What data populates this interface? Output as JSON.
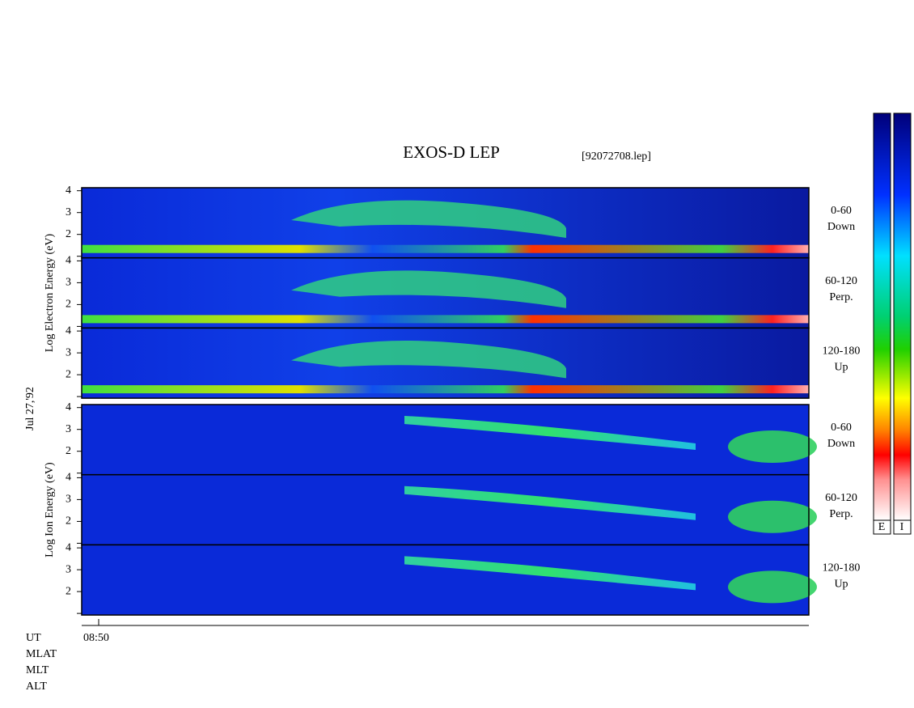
{
  "header": {
    "title": "EXOS-D LEP",
    "file": "[92072708.lep]"
  },
  "date": "Jul 27,'92",
  "groups": [
    {
      "axis_label": "Log  Electron  Energy (eV)",
      "panels": [
        {
          "range": "0-60",
          "direction": "Down",
          "yticks": [
            2,
            3,
            4
          ]
        },
        {
          "range": "60-120",
          "direction": "Perp.",
          "yticks": [
            2,
            3,
            4
          ]
        },
        {
          "range": "120-180",
          "direction": "Up",
          "yticks": [
            2,
            3,
            4
          ]
        }
      ]
    },
    {
      "axis_label": "Log  Ion  Energy (eV)",
      "panels": [
        {
          "range": "0-60",
          "direction": "Down",
          "yticks": [
            2,
            3,
            4
          ]
        },
        {
          "range": "60-120",
          "direction": "Perp.",
          "yticks": [
            2,
            3,
            4
          ]
        },
        {
          "range": "120-180",
          "direction": "Up",
          "yticks": [
            2,
            3,
            4
          ]
        }
      ]
    }
  ],
  "time_axis": {
    "tick": "08:50",
    "rows": [
      "UT",
      "MLAT",
      "MLT",
      "ALT"
    ]
  },
  "colorbars": [
    "E",
    "I"
  ]
}
